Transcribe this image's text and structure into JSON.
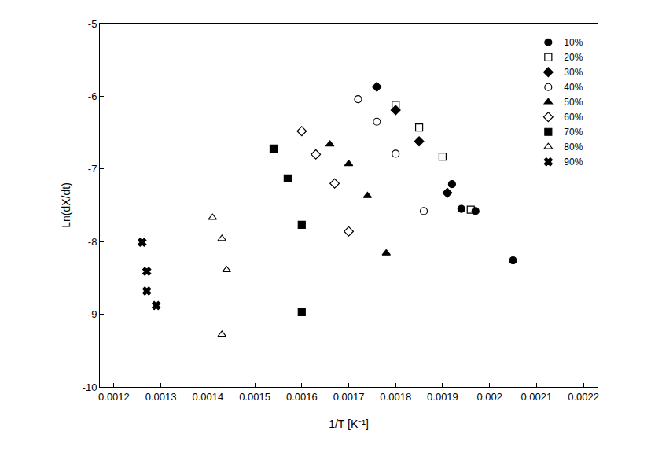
{
  "chart_data": {
    "type": "scatter",
    "x_label": "1/T [K⁻¹]",
    "y_label": "Ln(dX/dt)",
    "xlim": [
      0.00117,
      0.00223
    ],
    "xticks": [
      0.0012,
      0.0013,
      0.0014,
      0.0015,
      0.0016,
      0.0017,
      0.0018,
      0.0019,
      0.002,
      0.0021,
      0.0022
    ],
    "ylim": [
      -10,
      -5
    ],
    "yticks": [
      -10,
      -9,
      -8,
      -7,
      -6,
      -5
    ],
    "grid": false,
    "legend": "top right",
    "series": [
      {
        "name": "10%",
        "color": "#000000",
        "marker": "circle",
        "x": [
          0.00192,
          0.00194,
          0.00197,
          0.00205
        ],
        "values": [
          -7.21,
          -7.55,
          -7.58,
          -8.26
        ]
      },
      {
        "name": "20%",
        "color": "#000000",
        "marker": "square-open",
        "x": [
          0.0018,
          0.00185,
          0.0019,
          0.00196
        ],
        "values": [
          -6.12,
          -6.43,
          -6.83,
          -7.56
        ]
      },
      {
        "name": "30%",
        "color": "#000000",
        "marker": "diamond",
        "x": [
          0.00176,
          0.0018,
          0.00185,
          0.00191
        ],
        "values": [
          -5.87,
          -6.19,
          -6.62,
          -7.33
        ]
      },
      {
        "name": "40%",
        "color": "#000000",
        "marker": "circle-open",
        "x": [
          0.00172,
          0.00176,
          0.0018,
          0.00186
        ],
        "values": [
          -6.04,
          -6.35,
          -6.79,
          -7.58
        ]
      },
      {
        "name": "50%",
        "color": "#000000",
        "marker": "triangle-up",
        "x": [
          0.00166,
          0.0017,
          0.00174,
          0.00178
        ],
        "values": [
          -6.66,
          -6.93,
          -7.37,
          -8.16
        ]
      },
      {
        "name": "60%",
        "color": "#000000",
        "marker": "diamond-open",
        "x": [
          0.0016,
          0.00163,
          0.00167,
          0.0017
        ],
        "values": [
          -6.48,
          -6.8,
          -7.2,
          -7.86
        ]
      },
      {
        "name": "70%",
        "color": "#000000",
        "marker": "square",
        "x": [
          0.00154,
          0.00157,
          0.0016,
          0.0016
        ],
        "values": [
          -6.72,
          -7.13,
          -7.77,
          -8.97
        ]
      },
      {
        "name": "80%",
        "color": "#000000",
        "marker": "triangle-up-open",
        "x": [
          0.00141,
          0.00143,
          0.00144,
          0.00143
        ],
        "values": [
          -7.67,
          -7.96,
          -8.39,
          -9.28
        ]
      },
      {
        "name": "90%",
        "color": "#000000",
        "marker": "x",
        "x": [
          0.00126,
          0.00127,
          0.00127,
          0.00129
        ],
        "values": [
          -8.01,
          -8.41,
          -8.68,
          -8.88
        ]
      }
    ]
  }
}
